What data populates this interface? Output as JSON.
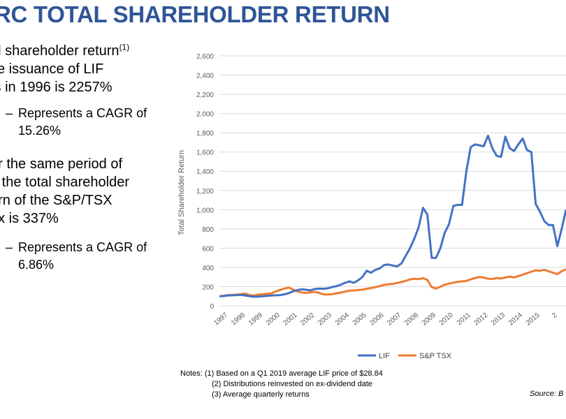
{
  "slide": {
    "title": "RC TOTAL SHAREHOLDER RETURN",
    "bullet1_lines": [
      "al shareholder return",
      "ce issuance of LIF",
      "ts in 1996 is 2257%"
    ],
    "bullet1_sup": "(1)",
    "sub1": [
      "Represents a CAGR of",
      "15.26%"
    ],
    "bullet2_lines": [
      "er the same period of",
      "e the total shareholder",
      "urn of the S&P/TSX",
      "ex is 337%"
    ],
    "sub2": [
      "Represents a CAGR of",
      "6.86%"
    ],
    "notes": [
      "Notes: (1) Based on a Q1 2019 average LIF price of $28.84",
      "(2) Distributions reinvested on ex-dividend date",
      "(3) Average quarterly returns"
    ],
    "source": "Source: B"
  },
  "chart_data": {
    "type": "line",
    "ylabel": "Total Shareholder Return",
    "xlabel": "",
    "ylim": [
      0,
      2600
    ],
    "yticks": [
      0,
      200,
      400,
      600,
      800,
      1000,
      1200,
      1400,
      1600,
      1800,
      2000,
      2200,
      2400,
      2600
    ],
    "ytick_labels": [
      "0",
      "200",
      "400",
      "600",
      "800",
      "1,000",
      "1,200",
      "1,400",
      "1,600",
      "1,800",
      "2,000",
      "2,200",
      "2,400",
      "2,600"
    ],
    "xtick_labels": [
      "1997",
      "1998",
      "1999",
      "2000",
      "2001",
      "2002",
      "2003",
      "2004",
      "2005",
      "2006",
      "2007",
      "2008",
      "2009",
      "2010",
      "2011",
      "2012",
      "2013",
      "2014",
      "2015",
      "2"
    ],
    "xlim_years": [
      1996.0,
      2016.0
    ],
    "grid": true,
    "legend_position": "bottom",
    "series": [
      {
        "name": "LIF",
        "color": "#4472C4",
        "x": [
          1996.0,
          1996.25,
          1996.5,
          1996.75,
          1997.0,
          1997.25,
          1997.5,
          1997.75,
          1998.0,
          1998.25,
          1998.5,
          1998.75,
          1999.0,
          1999.25,
          1999.5,
          1999.75,
          2000.0,
          2000.25,
          2000.5,
          2000.75,
          2001.0,
          2001.25,
          2001.5,
          2001.75,
          2002.0,
          2002.25,
          2002.5,
          2002.75,
          2003.0,
          2003.25,
          2003.5,
          2003.75,
          2004.0,
          2004.25,
          2004.5,
          2004.75,
          2005.0,
          2005.25,
          2005.5,
          2005.75,
          2006.0,
          2006.25,
          2006.5,
          2006.75,
          2007.0,
          2007.25,
          2007.5,
          2007.75,
          2008.0,
          2008.25,
          2008.5,
          2008.75,
          2009.0,
          2009.25,
          2009.5,
          2009.75,
          2010.0,
          2010.25,
          2010.5,
          2010.75,
          2011.0,
          2011.25,
          2011.5,
          2011.75,
          2012.0,
          2012.25,
          2012.5,
          2012.75,
          2013.0,
          2013.25,
          2013.5,
          2013.75,
          2014.0,
          2014.25,
          2014.5,
          2014.75,
          2015.0,
          2015.25,
          2015.5,
          2015.75,
          2016.0
        ],
        "values": [
          100,
          102,
          108,
          110,
          112,
          114,
          108,
          100,
          95,
          96,
          100,
          104,
          108,
          110,
          112,
          120,
          132,
          150,
          165,
          172,
          168,
          162,
          175,
          180,
          178,
          182,
          195,
          205,
          220,
          240,
          255,
          240,
          265,
          300,
          365,
          345,
          375,
          390,
          425,
          430,
          420,
          410,
          440,
          520,
          600,
          700,
          820,
          1020,
          950,
          500,
          500,
          600,
          760,
          850,
          1040,
          1050,
          1050,
          1400,
          1650,
          1680,
          1670,
          1660,
          1770,
          1640,
          1560,
          1550,
          1760,
          1640,
          1610,
          1680,
          1740,
          1620,
          1600,
          1060,
          980,
          880,
          840,
          840,
          620,
          800,
          1000
        ]
      },
      {
        "name": "S&P TSX",
        "color": "#ED7D31",
        "x": [
          1996.0,
          1996.25,
          1996.5,
          1996.75,
          1997.0,
          1997.25,
          1997.5,
          1997.75,
          1998.0,
          1998.25,
          1998.5,
          1998.75,
          1999.0,
          1999.25,
          1999.5,
          1999.75,
          2000.0,
          2000.25,
          2000.5,
          2000.75,
          2001.0,
          2001.25,
          2001.5,
          2001.75,
          2002.0,
          2002.25,
          2002.5,
          2002.75,
          2003.0,
          2003.25,
          2003.5,
          2003.75,
          2004.0,
          2004.25,
          2004.5,
          2004.75,
          2005.0,
          2005.25,
          2005.5,
          2005.75,
          2006.0,
          2006.25,
          2006.5,
          2006.75,
          2007.0,
          2007.25,
          2007.5,
          2007.75,
          2008.0,
          2008.25,
          2008.5,
          2008.75,
          2009.0,
          2009.25,
          2009.5,
          2009.75,
          2010.0,
          2010.25,
          2010.5,
          2010.75,
          2011.0,
          2011.25,
          2011.5,
          2011.75,
          2012.0,
          2012.25,
          2012.5,
          2012.75,
          2013.0,
          2013.25,
          2013.5,
          2013.75,
          2014.0,
          2014.25,
          2014.5,
          2014.75,
          2015.0,
          2015.25,
          2015.5,
          2015.75,
          2016.0
        ],
        "values": [
          100,
          105,
          112,
          115,
          118,
          122,
          128,
          112,
          108,
          118,
          122,
          125,
          130,
          150,
          165,
          180,
          190,
          170,
          150,
          140,
          135,
          140,
          145,
          135,
          120,
          118,
          122,
          130,
          138,
          148,
          158,
          160,
          165,
          168,
          178,
          185,
          195,
          205,
          218,
          225,
          228,
          238,
          248,
          260,
          275,
          282,
          278,
          288,
          270,
          195,
          180,
          200,
          220,
          232,
          242,
          250,
          255,
          260,
          275,
          290,
          300,
          295,
          282,
          280,
          290,
          285,
          295,
          305,
          295,
          310,
          325,
          340,
          355,
          370,
          365,
          375,
          360,
          345,
          330,
          360,
          380
        ]
      }
    ]
  }
}
